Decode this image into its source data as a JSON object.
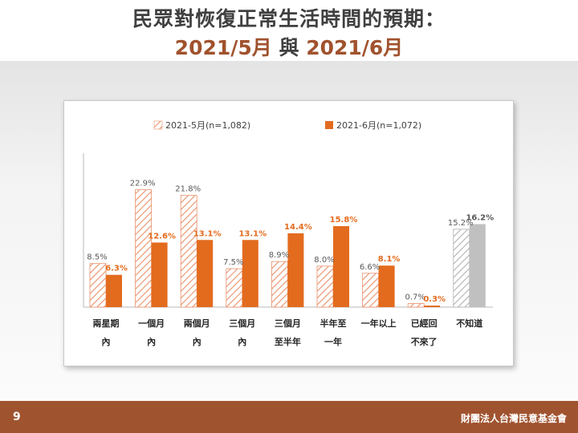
{
  "slide": {
    "title_line1": "民眾對恢復正常生活時間的預期：",
    "title_line2_a": "2021/5月",
    "title_line2_mid": " 與 ",
    "title_line2_b": "2021/6月",
    "page_number": "9",
    "organization": "財團法人台灣民意基金會"
  },
  "colors": {
    "series_may": "#e8916a",
    "series_june": "#e36b1e",
    "unknown_may": "#b0b0b0",
    "unknown_june": "#c0c0c0",
    "footer": "#a0532f",
    "title_accent": "#a0522d"
  },
  "chart_data": {
    "type": "bar",
    "categories": [
      [
        "兩星期",
        "內"
      ],
      [
        "一個月",
        "內"
      ],
      [
        "兩個月",
        "內"
      ],
      [
        "三個月",
        "內"
      ],
      [
        "三個月",
        "至半年"
      ],
      [
        "半年至",
        "一年"
      ],
      [
        "一年以上"
      ],
      [
        "已經回",
        "不來了"
      ],
      [
        "不知道"
      ]
    ],
    "series": [
      {
        "name": "2021-5月(n=1,082)",
        "values": [
          8.5,
          22.9,
          21.8,
          7.5,
          8.9,
          8.0,
          6.6,
          0.7,
          15.2
        ],
        "labels": [
          "8.5%",
          "22.9%",
          "21.8%",
          "7.5%",
          "8.9%",
          "8.0%",
          "6.6%",
          "0.7%",
          "15.2%"
        ]
      },
      {
        "name": "2021-6月(n=1,072)",
        "values": [
          6.3,
          12.6,
          13.1,
          13.1,
          14.4,
          15.8,
          8.1,
          0.3,
          16.2
        ],
        "labels": [
          "6.3%",
          "12.6%",
          "13.1%",
          "13.1%",
          "14.4%",
          "15.8%",
          "8.1%",
          "0.3%",
          "16.2%"
        ]
      }
    ],
    "ylim": [
      0,
      25
    ],
    "legend_position": "top",
    "grid": false
  }
}
